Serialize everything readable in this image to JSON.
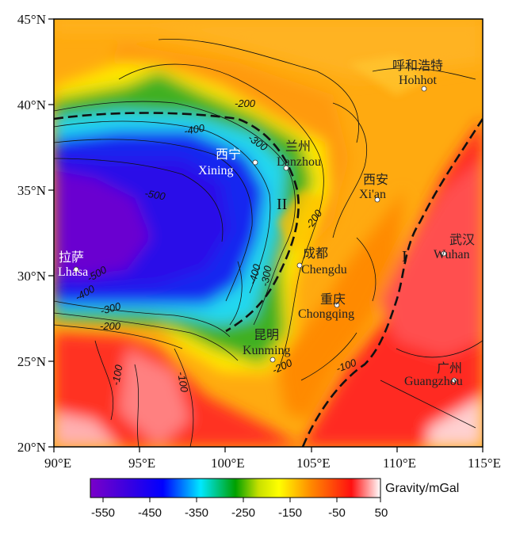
{
  "map": {
    "lon_ticks": [
      "90°E",
      "95°E",
      "100°E",
      "105°E",
      "110°E",
      "115°E"
    ],
    "lat_ticks": [
      "45°N",
      "40°N",
      "35°N",
      "30°N",
      "25°N",
      "20°N"
    ],
    "cities": [
      {
        "cn": "呼和浩特",
        "en": "Hohhot"
      },
      {
        "cn": "兰州",
        "en": "Lanzhou"
      },
      {
        "cn": "西宁",
        "en": "Xining"
      },
      {
        "cn": "西安",
        "en": "Xi'an"
      },
      {
        "cn": "拉萨",
        "en": "Lhasa"
      },
      {
        "cn": "成都",
        "en": "Chengdu"
      },
      {
        "cn": "武汉",
        "en": "Wuhan"
      },
      {
        "cn": "重庆",
        "en": "Chongqing"
      },
      {
        "cn": "昆明",
        "en": "Kunming"
      },
      {
        "cn": "广州",
        "en": "Guangzhou"
      }
    ],
    "contour_labels": [
      "-200",
      "-300",
      "-400",
      "-500",
      "-500",
      "-400",
      "-300",
      "-200",
      "-400",
      "-300",
      "-200",
      "-200",
      "-100",
      "-100",
      "-100"
    ],
    "zone_labels": [
      "II",
      "I"
    ]
  },
  "colorbar": {
    "title": "Gravity/mGal",
    "ticks": [
      "-550",
      "-450",
      "-350",
      "-250",
      "-150",
      "-50",
      "50"
    ],
    "range": [
      -570,
      50
    ],
    "colors": [
      "#7a00c8",
      "#0000ff",
      "#00e8ff",
      "#00a000",
      "#ffff00",
      "#ff8a00",
      "#ff1010",
      "#ffffff"
    ]
  }
}
